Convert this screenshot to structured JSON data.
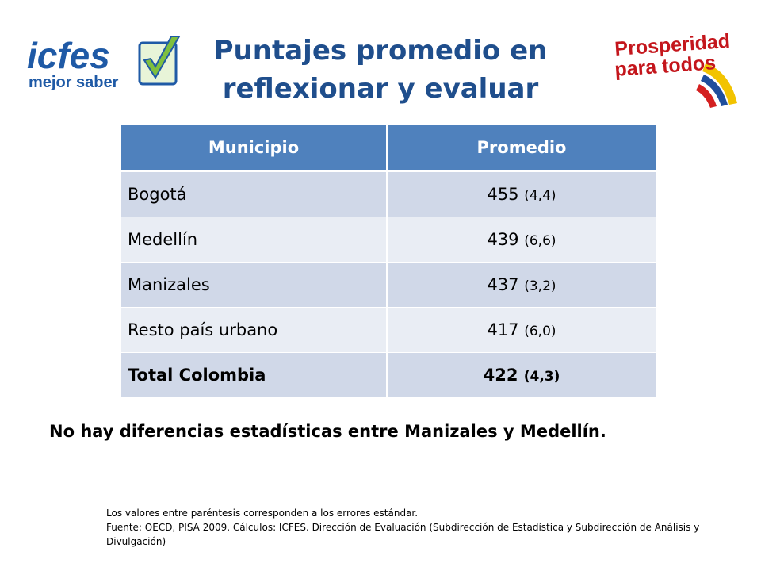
{
  "title": {
    "line1": "Puntajes promedio en",
    "line2": "reflexionar y evaluar"
  },
  "logos": {
    "left": {
      "word": "icfes",
      "tagline": "mejor saber",
      "icon": "checkmark-icon"
    },
    "right": {
      "line1": "Prosperidad",
      "line2": "para todos"
    }
  },
  "table": {
    "headers": [
      "Municipio",
      "Promedio"
    ],
    "rows": [
      {
        "municipio": "Bogotá",
        "score": "455",
        "se": "(4,4)"
      },
      {
        "municipio": "Medellín",
        "score": "439",
        "se": "(6,6)"
      },
      {
        "municipio": "Manizales",
        "score": "437",
        "se": "(3,2)"
      },
      {
        "municipio": "Resto país urbano",
        "score": "417",
        "se": "(6,0)"
      },
      {
        "municipio": "Total Colombia",
        "score": "422",
        "se": "(4,3)"
      }
    ]
  },
  "note": "No hay diferencias estadísticas entre Manizales y Medellín.",
  "footnote": {
    "line1": "Los valores entre paréntesis corresponden a los errores estándar.",
    "line2": "Fuente: OECD, PISA 2009.  Cálculos: ICFES. Dirección de Evaluación (Subdirección de Estadística y Subdirección de Análisis y Divulgación)"
  },
  "colors": {
    "title": "#1f4e8c",
    "header_bg": "#4f81bd",
    "row_dark": "#d0d8e8",
    "row_light": "#e9edf4",
    "icfes_blue": "#1f5aa6",
    "icfes_green": "#7fbf3f"
  }
}
